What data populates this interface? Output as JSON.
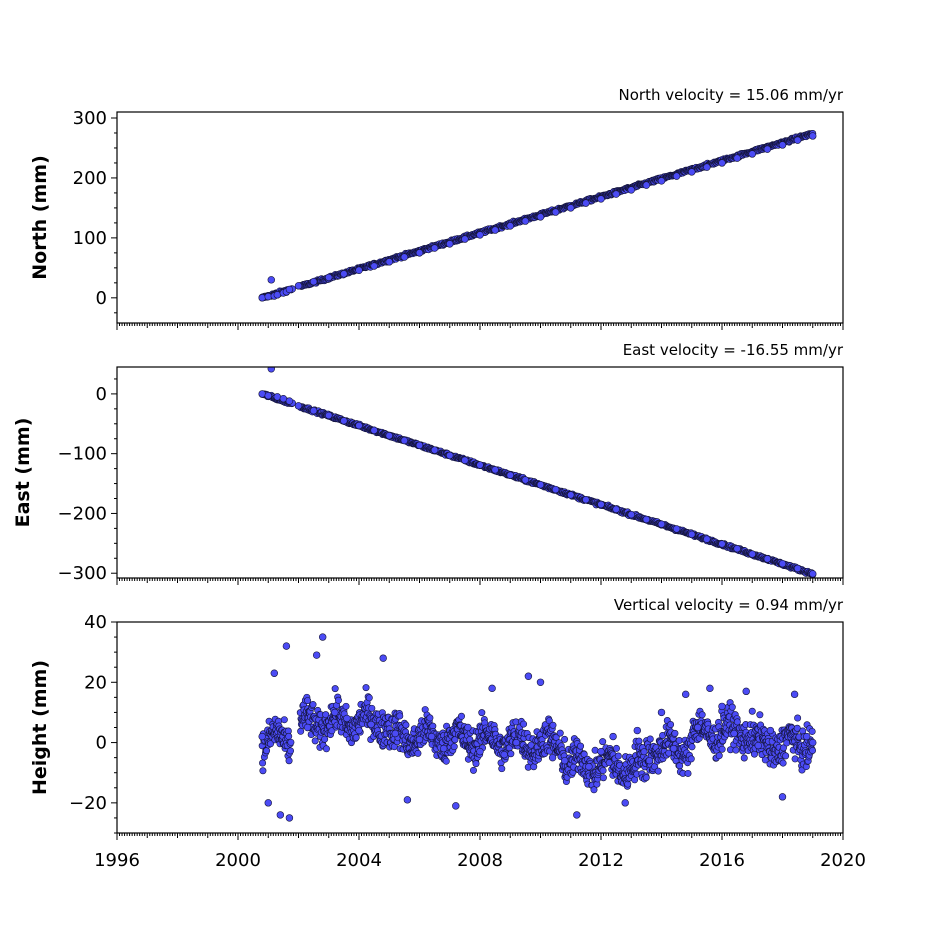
{
  "chart_data": [
    {
      "type": "scatter",
      "title": "North velocity = 15.06 mm/yr",
      "ylabel": "North (mm)",
      "xlim": [
        1996,
        2020
      ],
      "ylim": [
        -42,
        310
      ],
      "yticks": [
        0,
        100,
        200,
        300
      ],
      "ytick_labels": [
        "0",
        "100",
        "200",
        "300"
      ],
      "color": "#4b4bf5",
      "trend": {
        "start_year": 2000.8,
        "end_year": 2019.0,
        "start_value": 0,
        "velocity_per_year": 15.06
      },
      "series": [
        {
          "x": [
            2000.8,
            2001.0,
            2001.1,
            2001.2,
            2001.3,
            2001.5,
            2001.6,
            2001.7,
            2002.0,
            2002.5,
            2003.0,
            2003.5,
            2004.0,
            2004.5,
            2005.0,
            2005.5,
            2006.0,
            2006.5,
            2007.0,
            2007.5,
            2008.0,
            2008.5,
            2009.0,
            2009.5,
            2010.0,
            2010.5,
            2011.0,
            2011.5,
            2012.0,
            2012.5,
            2013.0,
            2013.5,
            2014.0,
            2014.5,
            2015.0,
            2015.5,
            2016.0,
            2016.5,
            2017.0,
            2017.5,
            2018.0,
            2018.5,
            2019.0
          ],
          "y": [
            0,
            2,
            30,
            3,
            5,
            8,
            10,
            14,
            20,
            27,
            34,
            40,
            46,
            53,
            60,
            68,
            75,
            83,
            90,
            98,
            105,
            113,
            120,
            128,
            135,
            143,
            150,
            158,
            165,
            173,
            180,
            188,
            195,
            203,
            210,
            218,
            225,
            233,
            240,
            248,
            255,
            263,
            270
          ]
        }
      ]
    },
    {
      "type": "scatter",
      "title": "East velocity = -16.55 mm/yr",
      "ylabel": "East (mm)",
      "xlim": [
        1996,
        2020
      ],
      "ylim": [
        -308,
        45
      ],
      "yticks": [
        0,
        -100,
        -200,
        -300
      ],
      "ytick_labels": [
        "0",
        "−100",
        "−200",
        "−300"
      ],
      "color": "#4b4bf5",
      "trend": {
        "start_year": 2000.8,
        "end_year": 2019.0,
        "start_value": 0,
        "velocity_per_year": -16.55
      },
      "series": [
        {
          "x": [
            2000.8,
            2001.0,
            2001.1,
            2001.3,
            2001.5,
            2001.7,
            2002.0,
            2002.5,
            2003.0,
            2003.5,
            2004.0,
            2004.5,
            2005.0,
            2005.5,
            2006.0,
            2006.5,
            2007.0,
            2007.5,
            2008.0,
            2008.5,
            2009.0,
            2009.5,
            2010.0,
            2010.5,
            2011.0,
            2011.5,
            2012.0,
            2012.5,
            2013.0,
            2013.5,
            2014.0,
            2014.5,
            2015.0,
            2015.5,
            2016.0,
            2016.5,
            2017.0,
            2017.5,
            2018.0,
            2018.5,
            2019.0
          ],
          "y": [
            0,
            -3,
            42,
            -5,
            -8,
            -12,
            -20,
            -28,
            -36,
            -45,
            -53,
            -61,
            -70,
            -78,
            -86,
            -94,
            -103,
            -111,
            -119,
            -127,
            -136,
            -144,
            -152,
            -160,
            -169,
            -177,
            -185,
            -193,
            -202,
            -210,
            -218,
            -226,
            -235,
            -243,
            -251,
            -259,
            -268,
            -276,
            -284,
            -292,
            -301
          ]
        }
      ]
    },
    {
      "type": "scatter",
      "title": "Vertical velocity = 0.94 mm/yr",
      "ylabel": "Height (mm)",
      "xlim": [
        1996,
        2020
      ],
      "ylim": [
        -30,
        40
      ],
      "yticks": [
        -20,
        0,
        20,
        40
      ],
      "ytick_labels": [
        "−20",
        "0",
        "20",
        "40"
      ],
      "xticks": [
        1996,
        2000,
        2004,
        2008,
        2012,
        2016,
        2020
      ],
      "xtick_labels": [
        "1996",
        "2000",
        "2004",
        "2008",
        "2012",
        "2016",
        "2020"
      ],
      "color": "#4b4bf5",
      "series": [
        {
          "x": [
            2000.8,
            2001.0,
            2001.2,
            2001.4,
            2001.6,
            2001.7,
            2002.3,
            2002.6,
            2002.8,
            2003.2,
            2003.6,
            2004.0,
            2004.4,
            2004.8,
            2005.2,
            2005.6,
            2006.0,
            2006.4,
            2006.8,
            2007.2,
            2007.6,
            2008.0,
            2008.4,
            2008.8,
            2009.2,
            2009.6,
            2010.0,
            2010.4,
            2010.8,
            2011.2,
            2011.6,
            2012.0,
            2012.4,
            2012.8,
            2013.2,
            2013.6,
            2014.0,
            2014.4,
            2014.8,
            2015.2,
            2015.6,
            2016.0,
            2016.4,
            2016.8,
            2017.2,
            2017.6,
            2018.0,
            2018.4,
            2018.8,
            2019.0
          ],
          "y": [
            2,
            -20,
            23,
            -24,
            32,
            -25,
            5,
            29,
            35,
            10,
            8,
            4,
            6,
            28,
            3,
            -19,
            1,
            2,
            -2,
            -21,
            5,
            -3,
            18,
            -4,
            0,
            22,
            20,
            -5,
            -6,
            -24,
            -8,
            -3,
            2,
            -20,
            4,
            -6,
            10,
            -2,
            16,
            5,
            18,
            12,
            3,
            17,
            -1,
            4,
            -18,
            16,
            2,
            0
          ]
        }
      ]
    }
  ]
}
